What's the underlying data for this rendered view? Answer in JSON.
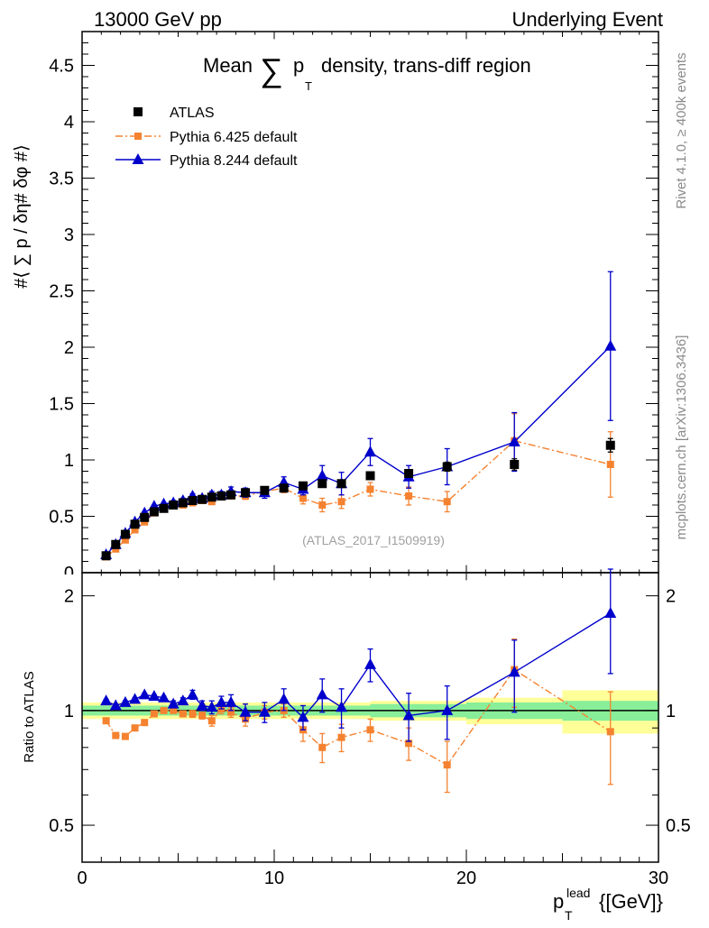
{
  "header": {
    "left": "13000 GeV pp",
    "right": "Underlying Event"
  },
  "side": {
    "rivet": "Rivet 4.1.0, ≥ 400k events",
    "mcplots": "mcplots.cern.ch [arXiv:1306.3436]"
  },
  "chart_data": {
    "type": "scatter",
    "title_pre": "Mean",
    "title_post": "density, trans-diff region",
    "analysis_tag": "(ATLAS_2017_I1509919)",
    "ylabel_main": "#⟨ ∑ p  / δη# δφ #⟩",
    "ylabel_ratio": "Ratio to ATLAS",
    "xlabel": "p_T^lead {[GeV]}",
    "xlim": [
      0,
      30
    ],
    "ylim_main": [
      0,
      4.8
    ],
    "ylim_ratio": [
      0.4,
      2.3
    ],
    "yticks_main": [
      "0.5",
      "1",
      "1.5",
      "2",
      "2.5",
      "3",
      "3.5",
      "4",
      "4.5"
    ],
    "yticks_ratio": [
      "0.5",
      "1",
      "2"
    ],
    "xticks": [
      "0",
      "10",
      "20",
      "30"
    ],
    "legend": [
      "ATLAS",
      "Pythia 6.425 default",
      "Pythia 8.244 default"
    ],
    "series": [
      {
        "name": "ATLAS",
        "color": "#000000",
        "x": [
          1.25,
          1.75,
          2.25,
          2.75,
          3.25,
          3.75,
          4.25,
          4.75,
          5.25,
          5.75,
          6.25,
          6.75,
          7.25,
          7.75,
          8.5,
          9.5,
          10.5,
          11.5,
          12.5,
          13.5,
          15,
          17,
          19,
          22.5,
          27.5
        ],
        "y": [
          0.15,
          0.25,
          0.34,
          0.43,
          0.49,
          0.54,
          0.57,
          0.6,
          0.62,
          0.64,
          0.65,
          0.67,
          0.68,
          0.69,
          0.71,
          0.73,
          0.75,
          0.77,
          0.79,
          0.79,
          0.86,
          0.88,
          0.94,
          0.96,
          1.13
        ],
        "err": [
          0.01,
          0.01,
          0.01,
          0.01,
          0.01,
          0.01,
          0.01,
          0.01,
          0.01,
          0.01,
          0.01,
          0.01,
          0.01,
          0.01,
          0.01,
          0.01,
          0.02,
          0.02,
          0.02,
          0.02,
          0.03,
          0.03,
          0.04,
          0.05,
          0.06
        ]
      },
      {
        "name": "Pythia 6.425 default",
        "color": "#f58230",
        "x": [
          1.25,
          1.75,
          2.25,
          2.75,
          3.25,
          3.75,
          4.25,
          4.75,
          5.25,
          5.75,
          6.25,
          6.75,
          7.25,
          7.75,
          8.5,
          9.5,
          10.5,
          11.5,
          12.5,
          13.5,
          15,
          17,
          19,
          22.5,
          27.5
        ],
        "y": [
          0.14,
          0.21,
          0.29,
          0.38,
          0.45,
          0.53,
          0.58,
          0.6,
          0.6,
          0.62,
          0.64,
          0.63,
          0.69,
          0.68,
          0.68,
          0.72,
          0.75,
          0.66,
          0.6,
          0.63,
          0.74,
          0.68,
          0.63,
          1.17,
          0.96
        ],
        "err": [
          0.01,
          0.01,
          0.01,
          0.01,
          0.01,
          0.01,
          0.01,
          0.01,
          0.01,
          0.01,
          0.01,
          0.02,
          0.02,
          0.02,
          0.03,
          0.03,
          0.04,
          0.05,
          0.06,
          0.06,
          0.06,
          0.08,
          0.09,
          0.24,
          0.29
        ]
      },
      {
        "name": "Pythia 8.244 default",
        "color": "#0000cc",
        "x": [
          1.25,
          1.75,
          2.25,
          2.75,
          3.25,
          3.75,
          4.25,
          4.75,
          5.25,
          5.75,
          6.25,
          6.75,
          7.25,
          7.75,
          8.5,
          9.5,
          10.5,
          11.5,
          12.5,
          13.5,
          15,
          17,
          19,
          22.5,
          27.5
        ],
        "y": [
          0.16,
          0.25,
          0.35,
          0.45,
          0.53,
          0.59,
          0.61,
          0.62,
          0.64,
          0.68,
          0.66,
          0.69,
          0.69,
          0.72,
          0.71,
          0.71,
          0.8,
          0.74,
          0.86,
          0.79,
          1.07,
          0.85,
          0.94,
          1.16,
          2.01
        ],
        "err": [
          0.01,
          0.01,
          0.01,
          0.01,
          0.01,
          0.01,
          0.01,
          0.02,
          0.02,
          0.02,
          0.02,
          0.03,
          0.03,
          0.04,
          0.04,
          0.05,
          0.05,
          0.05,
          0.09,
          0.1,
          0.12,
          0.1,
          0.16,
          0.26,
          0.66
        ]
      }
    ],
    "ratio": [
      {
        "name": "Pythia 6.425 default",
        "y": [
          0.94,
          0.86,
          0.855,
          0.9,
          0.93,
          0.98,
          1.0,
          1.0,
          0.98,
          0.98,
          0.97,
          0.94,
          1.01,
          0.99,
          0.95,
          0.99,
          1.0,
          0.89,
          0.8,
          0.85,
          0.89,
          0.82,
          0.72,
          1.28,
          0.88
        ],
        "err": [
          0.01,
          0.01,
          0.01,
          0.01,
          0.01,
          0.01,
          0.01,
          0.01,
          0.01,
          0.02,
          0.02,
          0.03,
          0.03,
          0.03,
          0.04,
          0.04,
          0.04,
          0.06,
          0.07,
          0.07,
          0.06,
          0.08,
          0.11,
          0.26,
          0.24
        ]
      },
      {
        "name": "Pythia 8.244 default",
        "y": [
          1.06,
          1.03,
          1.05,
          1.07,
          1.1,
          1.09,
          1.08,
          1.04,
          1.06,
          1.1,
          1.03,
          1.02,
          1.05,
          1.05,
          0.99,
          0.99,
          1.07,
          0.96,
          1.1,
          1.02,
          1.32,
          0.97,
          1.0,
          1.26,
          1.8
        ],
        "err": [
          0.01,
          0.01,
          0.01,
          0.01,
          0.01,
          0.01,
          0.01,
          0.02,
          0.02,
          0.03,
          0.03,
          0.04,
          0.04,
          0.05,
          0.05,
          0.06,
          0.07,
          0.07,
          0.11,
          0.12,
          0.13,
          0.14,
          0.16,
          0.27,
          0.55
        ]
      }
    ],
    "ratio_bands": {
      "x_edges": [
        0,
        10,
        15,
        20,
        25,
        30
      ],
      "inner": [
        0.03,
        0.03,
        0.04,
        0.05,
        0.06
      ],
      "outer": [
        0.05,
        0.05,
        0.06,
        0.08,
        0.13
      ]
    }
  }
}
